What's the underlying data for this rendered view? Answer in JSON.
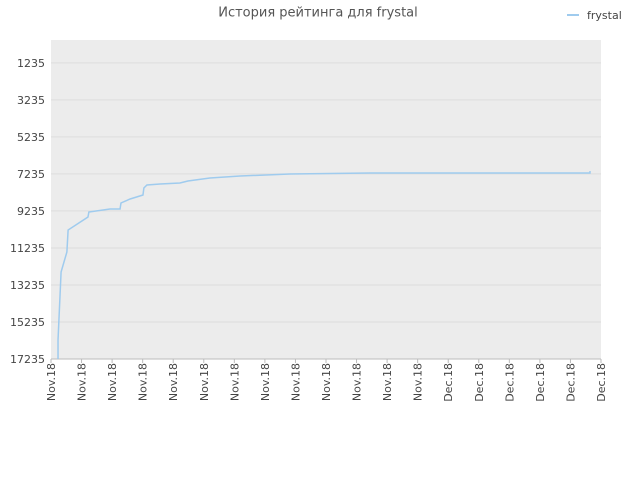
{
  "chart_data": {
    "type": "line",
    "title": "История рейтинга для frystal",
    "x": [
      0.23,
      0.23,
      0.33,
      0.52,
      0.56,
      1.21,
      1.24,
      1.93,
      2.26,
      2.29,
      2.59,
      3.01,
      3.04,
      3.14,
      3.57,
      4.22,
      4.48,
      5.2,
      6.19,
      7.82,
      10.44,
      17.64,
      17.64
    ],
    "series": [
      {
        "name": "frystal",
        "color": "#9fcbee",
        "values": [
          17235,
          16208,
          12535,
          11454,
          10265,
          9563,
          9293,
          9131,
          9131,
          8806,
          8590,
          8374,
          7996,
          7834,
          7780,
          7726,
          7618,
          7456,
          7348,
          7240,
          7186,
          7186,
          7078
        ]
      }
    ],
    "xlim": [
      0,
      18
    ],
    "xticks": [
      {
        "value": 0,
        "label": "Nov.18"
      },
      {
        "value": 1,
        "label": "Nov.18"
      },
      {
        "value": 2,
        "label": "Nov.18"
      },
      {
        "value": 3,
        "label": "Nov.18"
      },
      {
        "value": 4,
        "label": "Nov.18"
      },
      {
        "value": 5,
        "label": "Nov.18"
      },
      {
        "value": 6,
        "label": "Nov.18"
      },
      {
        "value": 7,
        "label": "Nov.18"
      },
      {
        "value": 8,
        "label": "Nov.18"
      },
      {
        "value": 9,
        "label": "Nov.18"
      },
      {
        "value": 10,
        "label": "Nov.18"
      },
      {
        "value": 11,
        "label": "Nov.18"
      },
      {
        "value": 12,
        "label": "Nov.18"
      },
      {
        "value": 13,
        "label": "Dec.18"
      },
      {
        "value": 14,
        "label": "Dec.18"
      },
      {
        "value": 15,
        "label": "Dec.18"
      },
      {
        "value": 16,
        "label": "Dec.18"
      },
      {
        "value": 17,
        "label": "Dec.18"
      },
      {
        "value": 18,
        "label": "Dec.18"
      }
    ],
    "ylim": [
      17235,
      0
    ],
    "yticks": [
      1235,
      3235,
      5235,
      7235,
      9235,
      11235,
      13235,
      15235,
      17235
    ],
    "grid": true,
    "legend": "top-right"
  }
}
